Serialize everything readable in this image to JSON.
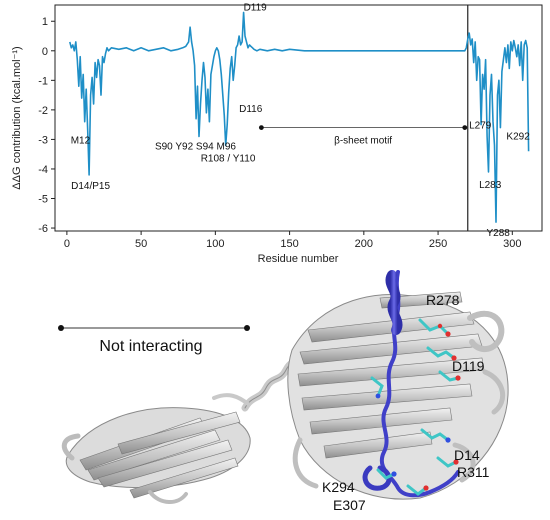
{
  "chart_data": {
    "type": "line",
    "ylabel": "ΔΔG contribution (kcal.mol⁻¹)",
    "xlabel": "Residue number",
    "xlim": [
      -8,
      320
    ],
    "ylim": [
      -6.1,
      1.55
    ],
    "xticks": [
      0,
      50,
      100,
      150,
      200,
      250,
      300
    ],
    "yticks": [
      1,
      0,
      -1,
      -2,
      -3,
      -4,
      -5,
      -6
    ],
    "grid": false,
    "series_color": "#1f8fc7",
    "divider_x": 270,
    "series": [
      {
        "x": [
          2,
          3,
          4,
          5,
          6,
          7,
          8,
          9,
          10,
          11,
          12,
          13,
          14,
          15,
          16,
          17,
          18,
          19,
          20,
          21,
          22,
          23,
          24,
          25,
          26,
          27,
          28,
          30,
          35,
          40,
          45,
          50,
          55,
          60,
          65,
          70,
          75,
          78,
          80,
          82,
          83,
          84,
          85,
          86,
          87,
          88,
          89,
          90,
          91,
          92,
          93,
          94,
          95,
          96,
          97,
          98,
          99,
          100,
          101,
          102,
          103,
          104,
          105,
          106,
          107,
          108,
          109,
          110,
          111,
          112,
          113,
          114,
          115,
          116,
          117,
          118,
          119,
          120,
          121,
          122,
          123,
          124,
          125,
          126,
          128,
          130,
          135,
          140,
          145,
          150,
          160,
          180,
          200,
          220,
          240,
          260,
          268,
          269,
          270,
          271,
          272,
          273,
          274,
          275,
          276,
          277,
          278,
          279,
          280,
          281,
          282,
          283,
          284,
          285,
          286,
          287,
          288,
          289,
          290,
          291,
          292,
          293,
          294,
          295,
          296,
          297,
          298,
          299,
          300,
          301,
          302,
          303,
          304,
          305,
          306,
          307,
          308,
          309,
          310,
          311
        ],
        "values": [
          0.3,
          0.1,
          0.2,
          0.0,
          0.3,
          -0.3,
          -1.2,
          -0.2,
          -1.6,
          -0.8,
          -2.4,
          -1.3,
          -2.7,
          -4.2,
          -1.5,
          -0.9,
          -1.8,
          -0.4,
          -0.9,
          -0.3,
          -0.5,
          -1.5,
          -0.2,
          -0.4,
          -0.1,
          0.1,
          0.0,
          0.1,
          0.05,
          0.1,
          0.0,
          0.1,
          0.0,
          0.05,
          0.1,
          0.0,
          0.05,
          0.1,
          0.15,
          0.3,
          0.8,
          0.3,
          0.0,
          -0.5,
          -2.3,
          -1.2,
          -2.9,
          -1.8,
          -1.0,
          -0.4,
          -0.9,
          -2.1,
          -1.3,
          -2.4,
          -0.8,
          -0.5,
          -0.2,
          0.0,
          0.1,
          0.0,
          -0.3,
          -0.8,
          -1.5,
          -2.2,
          -3.2,
          -2.5,
          -1.4,
          -0.6,
          -0.2,
          -1.0,
          -0.5,
          0.1,
          0.2,
          0.5,
          0.2,
          0.3,
          1.3,
          0.5,
          0.3,
          0.1,
          0.2,
          0.15,
          0.1,
          0.05,
          0.0,
          0.05,
          0.0,
          0.05,
          0.0,
          0.05,
          0.0,
          0.0,
          0.0,
          0.0,
          0.0,
          0.0,
          0.0,
          0.1,
          0.4,
          0.6,
          0.2,
          0.4,
          -0.4,
          0.3,
          -1.0,
          -0.2,
          -0.3,
          -2.5,
          -0.8,
          -1.3,
          -0.3,
          -2.9,
          -4.1,
          -1.5,
          -0.8,
          -2.4,
          -3.2,
          -5.8,
          -1.5,
          -1.0,
          -2.6,
          -0.7,
          -0.3,
          0.1,
          -0.4,
          0.2,
          -0.6,
          0.3,
          0.0,
          0.35,
          0.1,
          -0.2,
          0.2,
          -0.5,
          0.3,
          -1.0,
          0.2,
          0.35,
          0.1,
          -3.4
        ]
      }
    ],
    "annotations": [
      {
        "text": "D119",
        "x": 119,
        "y": 1.3
      },
      {
        "text": "D116",
        "x": 116,
        "y": -1.6
      },
      {
        "text": "M12",
        "x": 12,
        "y": -2.8
      },
      {
        "text": "D14/P15",
        "x": 15,
        "y": -4.2
      },
      {
        "text": "S90 Y92 S94 M96",
        "x": 93,
        "y": -3.0
      },
      {
        "text": "R108 / Y110",
        "x": 109,
        "y": -3.2
      },
      {
        "text": "L279",
        "x": 279,
        "y": -2.5
      },
      {
        "text": "K292",
        "x": 292,
        "y": -2.6
      },
      {
        "text": "L283",
        "x": 283,
        "y": -4.1
      },
      {
        "text": "Y288",
        "x": 288,
        "y": -5.8
      }
    ],
    "motif": {
      "text": "β-sheet motif",
      "x_start": 131,
      "x_end": 268,
      "y": -2.6
    }
  },
  "structure": {
    "region_label": "Not interacting",
    "residue_labels": [
      "R278",
      "D119",
      "D14",
      "R311",
      "K294",
      "E307"
    ],
    "colors": {
      "protein": "#c8c8c8",
      "protein_dark": "#9a9a9a",
      "peptide": "#4f4fd6",
      "sidechain_carbon": "#3fc6c6",
      "oxygen": "#e03030",
      "nitrogen": "#3050e0"
    }
  }
}
